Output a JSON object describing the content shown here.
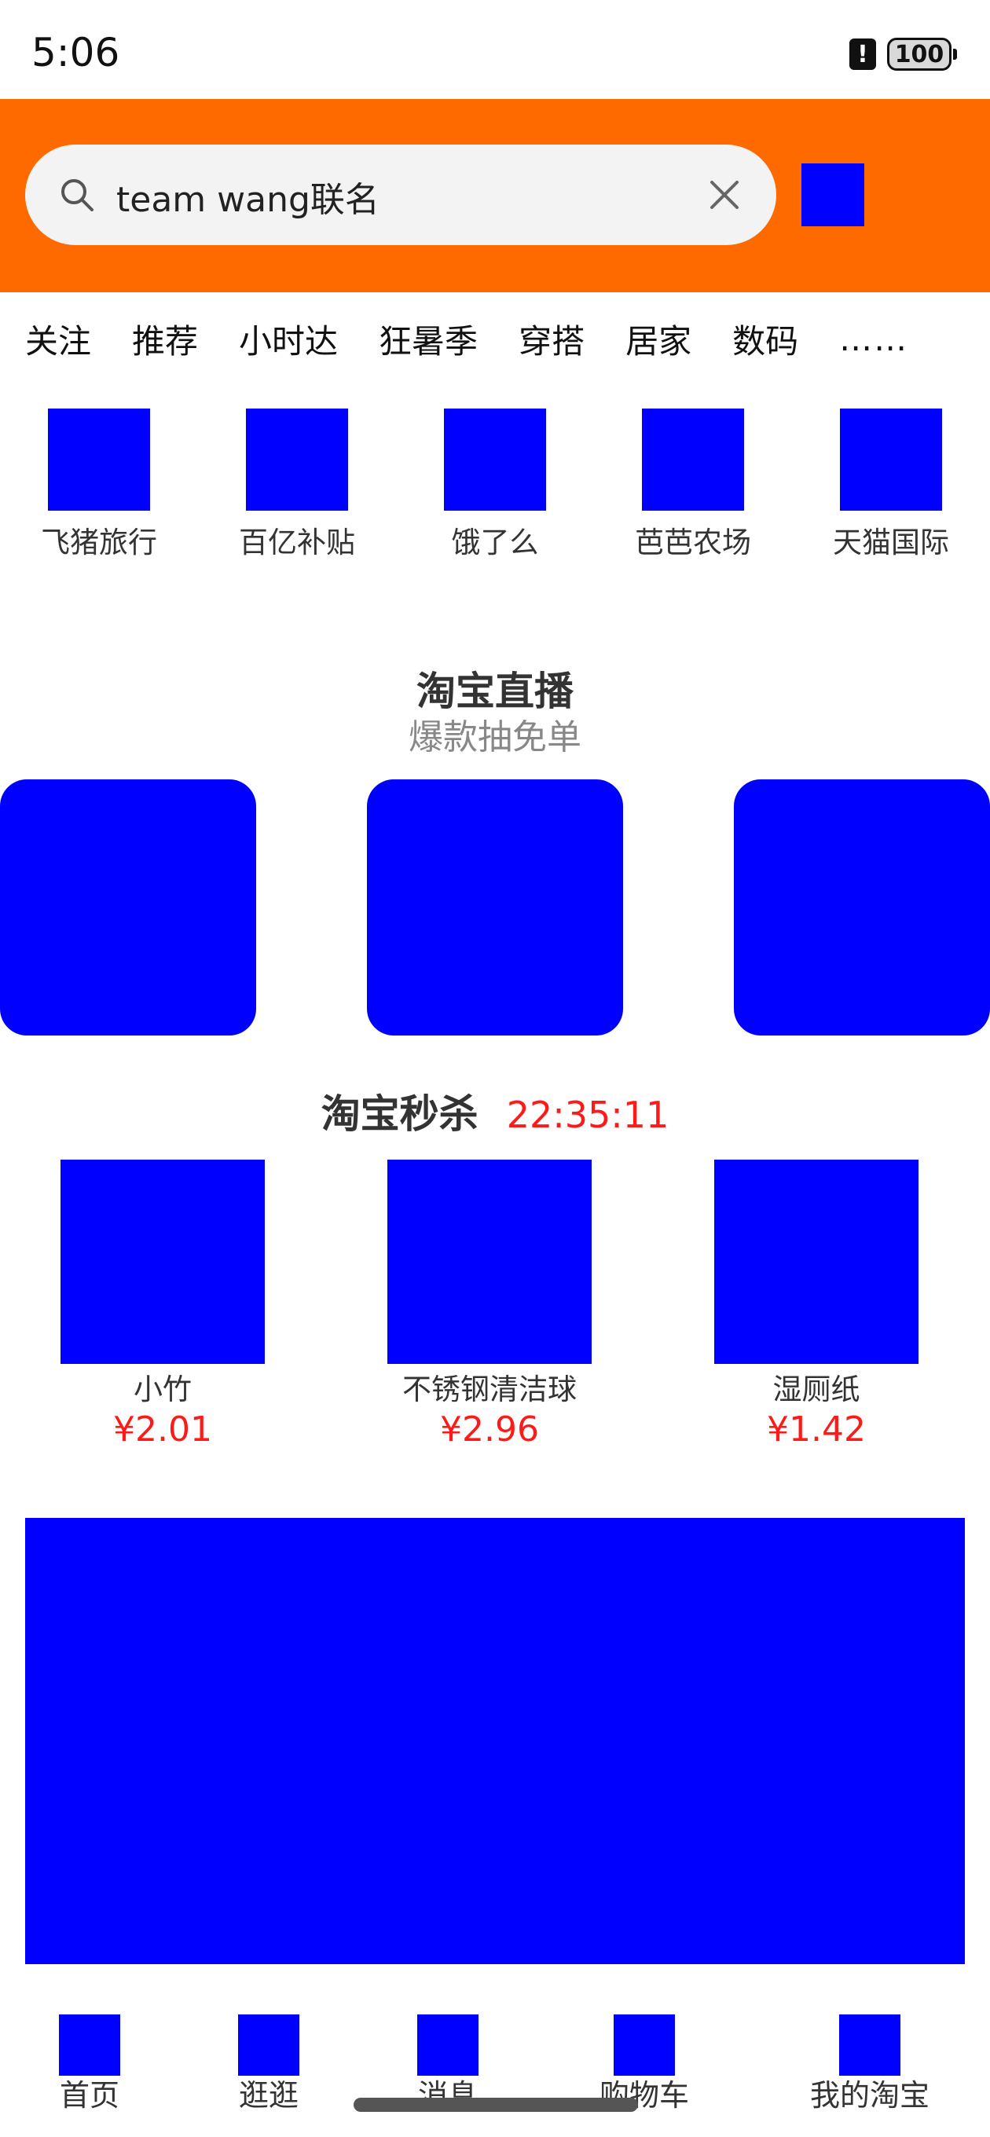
{
  "status_bar": {
    "time": "5:06",
    "battery": "100",
    "alert_glyph": "!"
  },
  "header": {
    "bg_color": "#ff6a00",
    "search": {
      "value": "team wang联名",
      "icon": "search-icon",
      "clear_icon": "close-icon"
    }
  },
  "tabs": [
    "关注",
    "推荐",
    "小时达",
    "狂暑季",
    "穿搭",
    "居家",
    "数码",
    "……"
  ],
  "quick_entries": [
    "飞猪旅行",
    "百亿补贴",
    "饿了么",
    "芭芭农场",
    "天猫国际"
  ],
  "live": {
    "title": "淘宝直播",
    "subtitle": "爆款抽免单"
  },
  "flash_sale": {
    "title": "淘宝秒杀",
    "timer": "22:35:11",
    "items": [
      {
        "name": "小竹",
        "price": "¥2.01"
      },
      {
        "name": "不锈钢清洁球",
        "price": "¥2.96"
      },
      {
        "name": "湿厕纸",
        "price": "¥1.42"
      }
    ]
  },
  "bottom_nav": [
    "首页",
    "逛逛",
    "消息",
    "购物车",
    "我的淘宝"
  ],
  "colors": {
    "placeholder": "#0000ff",
    "price": "#ff1a1a",
    "accent": "#ff6a00"
  }
}
